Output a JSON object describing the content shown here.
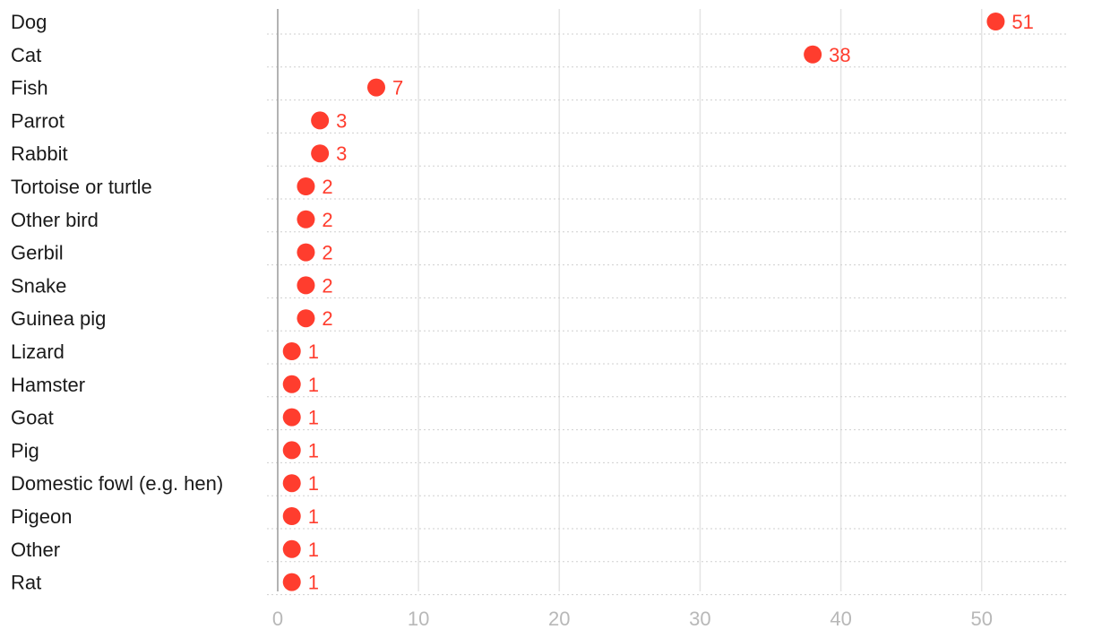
{
  "chart_data": {
    "type": "scatter",
    "title": "",
    "xlabel": "",
    "ylabel": "",
    "categories": [
      "Dog",
      "Cat",
      "Fish",
      "Parrot",
      "Rabbit",
      "Tortoise or turtle",
      "Other bird",
      "Gerbil",
      "Snake",
      "Guinea pig",
      "Lizard",
      "Hamster",
      "Goat",
      "Pig",
      "Domestic fowl (e.g. hen)",
      "Pigeon",
      "Other",
      "Rat"
    ],
    "values": [
      51,
      38,
      7,
      3,
      3,
      2,
      2,
      2,
      2,
      2,
      1,
      1,
      1,
      1,
      1,
      1,
      1,
      1
    ],
    "value_labels": [
      "51",
      "38",
      "7",
      "3",
      "3",
      "2",
      "2",
      "2",
      "2",
      "2",
      "1",
      "1",
      "1",
      "1",
      "1",
      "1",
      "1",
      "1"
    ],
    "xlim": [
      0,
      56
    ],
    "xticks": [
      0,
      10,
      20,
      30,
      40,
      50
    ],
    "xtick_labels": [
      "0",
      "10",
      "20",
      "30",
      "40",
      "50"
    ],
    "grid": true,
    "legend": "none",
    "marker_color": "#ff3d2e",
    "label_color": "#ff3d2e"
  }
}
